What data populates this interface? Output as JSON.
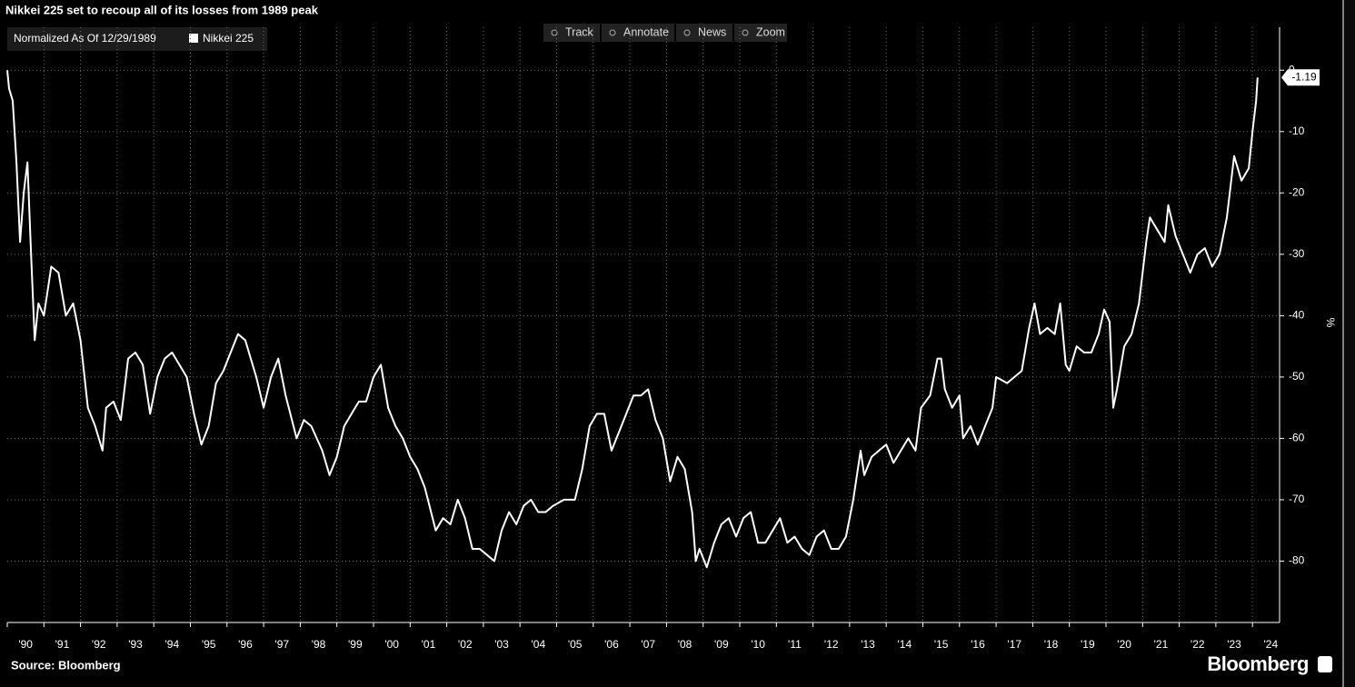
{
  "chart_data": {
    "type": "line",
    "title": "Nikkei 225 set to recoup all of its losses from 1989 peak",
    "legend_title": "Normalized As Of 12/29/1989",
    "toolbar": [
      "Track",
      "Annotate",
      "News",
      "Zoom"
    ],
    "y_label": "%",
    "source": "Source: Bloomberg",
    "brand": "Bloomberg",
    "x": [
      1990.0,
      1990.05,
      1990.15,
      1990.25,
      1990.35,
      1990.45,
      1990.55,
      1990.65,
      1990.75,
      1990.85,
      1991.0,
      1991.2,
      1991.4,
      1991.6,
      1991.8,
      1992.0,
      1992.2,
      1992.4,
      1992.6,
      1992.7,
      1992.9,
      1993.1,
      1993.3,
      1993.5,
      1993.7,
      1993.9,
      1994.1,
      1994.3,
      1994.5,
      1994.7,
      1994.9,
      1995.1,
      1995.3,
      1995.5,
      1995.7,
      1995.9,
      1996.1,
      1996.3,
      1996.5,
      1996.8,
      1997.0,
      1997.2,
      1997.4,
      1997.6,
      1997.9,
      1998.1,
      1998.3,
      1998.6,
      1998.8,
      1999.0,
      1999.2,
      1999.4,
      1999.6,
      1999.8,
      2000.0,
      2000.2,
      2000.4,
      2000.6,
      2000.8,
      2001.0,
      2001.2,
      2001.4,
      2001.7,
      2001.9,
      2002.1,
      2002.3,
      2002.5,
      2002.7,
      2002.9,
      2003.1,
      2003.3,
      2003.5,
      2003.7,
      2003.9,
      2004.1,
      2004.3,
      2004.5,
      2004.7,
      2004.9,
      2005.2,
      2005.5,
      2005.7,
      2005.9,
      2006.1,
      2006.3,
      2006.5,
      2006.7,
      2006.9,
      2007.1,
      2007.3,
      2007.5,
      2007.7,
      2007.9,
      2008.1,
      2008.3,
      2008.5,
      2008.7,
      2008.8,
      2008.9,
      2009.1,
      2009.3,
      2009.5,
      2009.7,
      2009.9,
      2010.1,
      2010.3,
      2010.5,
      2010.7,
      2010.9,
      2011.1,
      2011.3,
      2011.5,
      2011.7,
      2011.9,
      2012.1,
      2012.3,
      2012.5,
      2012.7,
      2012.9,
      2013.1,
      2013.3,
      2013.4,
      2013.6,
      2013.8,
      2014.0,
      2014.2,
      2014.4,
      2014.6,
      2014.8,
      2014.95,
      2015.2,
      2015.4,
      2015.5,
      2015.6,
      2015.8,
      2016.0,
      2016.1,
      2016.3,
      2016.5,
      2016.7,
      2016.9,
      2017.0,
      2017.3,
      2017.5,
      2017.7,
      2017.9,
      2018.05,
      2018.2,
      2018.4,
      2018.6,
      2018.75,
      2018.9,
      2019.0,
      2019.2,
      2019.4,
      2019.6,
      2019.8,
      2019.95,
      2020.1,
      2020.2,
      2020.3,
      2020.5,
      2020.7,
      2020.9,
      2021.1,
      2021.2,
      2021.4,
      2021.6,
      2021.7,
      2021.9,
      2022.1,
      2022.3,
      2022.5,
      2022.7,
      2022.9,
      2023.1,
      2023.3,
      2023.5,
      2023.7,
      2023.9,
      2024.0,
      2024.1,
      2024.14
    ],
    "series": [
      {
        "name": "Nikkei 225",
        "color": "#ffffff",
        "values": [
          0,
          -3,
          -5,
          -15,
          -28,
          -20,
          -15,
          -30,
          -44,
          -38,
          -40,
          -32,
          -33,
          -40,
          -38,
          -44,
          -55,
          -58,
          -62,
          -55,
          -54,
          -57,
          -47,
          -46,
          -48,
          -56,
          -50,
          -47,
          -46,
          -48,
          -50,
          -56,
          -61,
          -58,
          -51,
          -49,
          -46,
          -43,
          -44,
          -50,
          -55,
          -50,
          -47,
          -53,
          -60,
          -57,
          -58,
          -62,
          -66,
          -63,
          -58,
          -56,
          -54,
          -54,
          -50,
          -48,
          -55,
          -58,
          -60,
          -63,
          -65,
          -68,
          -75,
          -73,
          -74,
          -70,
          -73,
          -78,
          -78,
          -79,
          -80,
          -75,
          -72,
          -74,
          -71,
          -70,
          -72,
          -72,
          -71,
          -70,
          -70,
          -65,
          -58,
          -56,
          -56,
          -62,
          -59,
          -56,
          -53,
          -53,
          -52,
          -57,
          -60,
          -67,
          -63,
          -65,
          -72,
          -80,
          -78,
          -81,
          -77,
          -74,
          -73,
          -76,
          -73,
          -72,
          -77,
          -77,
          -75,
          -73,
          -77,
          -76,
          -78,
          -79,
          -76,
          -75,
          -78,
          -78,
          -76,
          -70,
          -62,
          -66,
          -63,
          -62,
          -61,
          -64,
          -62,
          -60,
          -62,
          -55,
          -53,
          -47,
          -47,
          -52,
          -55,
          -53,
          -60,
          -58,
          -61,
          -58,
          -55,
          -50,
          -51,
          -50,
          -49,
          -42,
          -38,
          -43,
          -42,
          -43,
          -38,
          -48,
          -49,
          -45,
          -46,
          -46,
          -43,
          -39,
          -41,
          -55,
          -52,
          -45,
          -43,
          -38,
          -28,
          -24,
          -26,
          -28,
          -22,
          -27,
          -30,
          -33,
          -30,
          -29,
          -32,
          -30,
          -24,
          -14,
          -18,
          -16,
          -10,
          -5,
          -1.19
        ]
      }
    ],
    "xlim": [
      1990,
      2024.74
    ],
    "xticks": [
      {
        "value": 1990,
        "label": "'90"
      },
      {
        "value": 1991,
        "label": "'91"
      },
      {
        "value": 1992,
        "label": "'92"
      },
      {
        "value": 1993,
        "label": "'93"
      },
      {
        "value": 1994,
        "label": "'94"
      },
      {
        "value": 1995,
        "label": "'95"
      },
      {
        "value": 1996,
        "label": "'96"
      },
      {
        "value": 1997,
        "label": "'97"
      },
      {
        "value": 1998,
        "label": "'98"
      },
      {
        "value": 1999,
        "label": "'99"
      },
      {
        "value": 2000,
        "label": "'00"
      },
      {
        "value": 2001,
        "label": "'01"
      },
      {
        "value": 2002,
        "label": "'02"
      },
      {
        "value": 2003,
        "label": "'03"
      },
      {
        "value": 2004,
        "label": "'04"
      },
      {
        "value": 2005,
        "label": "'05"
      },
      {
        "value": 2006,
        "label": "'06"
      },
      {
        "value": 2007,
        "label": "'07"
      },
      {
        "value": 2008,
        "label": "'08"
      },
      {
        "value": 2009,
        "label": "'09"
      },
      {
        "value": 2010,
        "label": "'10"
      },
      {
        "value": 2011,
        "label": "'11"
      },
      {
        "value": 2012,
        "label": "'12"
      },
      {
        "value": 2013,
        "label": "'13"
      },
      {
        "value": 2014,
        "label": "'14"
      },
      {
        "value": 2015,
        "label": "'15"
      },
      {
        "value": 2016,
        "label": "'16"
      },
      {
        "value": 2017,
        "label": "'17"
      },
      {
        "value": 2018,
        "label": "'18"
      },
      {
        "value": 2019,
        "label": "'19"
      },
      {
        "value": 2020,
        "label": "'20"
      },
      {
        "value": 2021,
        "label": "'21"
      },
      {
        "value": 2022,
        "label": "'22"
      },
      {
        "value": 2023,
        "label": "'23"
      },
      {
        "value": 2024,
        "label": "'24"
      }
    ],
    "ylim": [
      -90,
      7
    ],
    "yticks": [
      -80,
      -70,
      -60,
      -50,
      -40,
      -30,
      -20,
      -10,
      0
    ],
    "grid": true
  }
}
